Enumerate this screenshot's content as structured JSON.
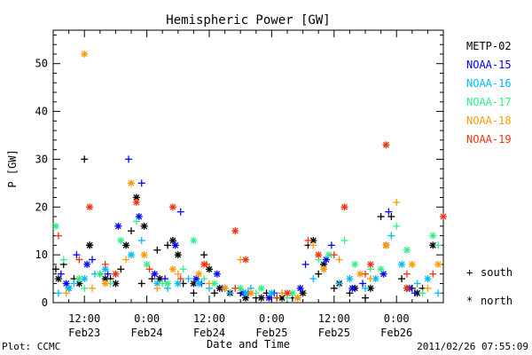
{
  "chart_data": {
    "type": "scatter",
    "title": "Hemispheric Power [GW]",
    "xlabel": "Date and Time",
    "ylabel": "P [GW]",
    "ylim": [
      0,
      57
    ],
    "xlim": [
      "2011-02-23 06:00",
      "2011-02-26 09:00"
    ],
    "yticks": [
      0,
      10,
      20,
      30,
      40,
      50
    ],
    "xticks": [
      {
        "at": "2011-02-23 12:00",
        "time": "12:00",
        "date": "Feb23"
      },
      {
        "at": "2011-02-24 00:00",
        "time": "0:00",
        "date": "Feb24"
      },
      {
        "at": "2011-02-24 12:00",
        "time": "12:00",
        "date": "Feb24"
      },
      {
        "at": "2011-02-25 00:00",
        "time": "0:00",
        "date": "Feb25"
      },
      {
        "at": "2011-02-25 12:00",
        "time": "12:00",
        "date": "Feb25"
      },
      {
        "at": "2011-02-26 00:00",
        "time": "0:00",
        "date": "Feb26"
      }
    ],
    "grid": false,
    "legend_position": "right",
    "markers": {
      "south": "+",
      "north": "*"
    },
    "marker_legend": {
      "south": "south",
      "north": "north"
    },
    "series": [
      {
        "name": "METP-02",
        "color": "#000000",
        "south": [
          [
            "2011-02-23 06:30",
            7
          ],
          [
            "2011-02-23 08:00",
            8
          ],
          [
            "2011-02-23 10:00",
            5
          ],
          [
            "2011-02-23 12:00",
            30
          ],
          [
            "2011-02-23 13:00",
            12
          ],
          [
            "2011-02-23 15:00",
            6
          ],
          [
            "2011-02-23 17:00",
            5
          ],
          [
            "2011-02-23 19:00",
            7
          ],
          [
            "2011-02-23 21:00",
            15
          ],
          [
            "2011-02-23 23:00",
            4
          ],
          [
            "2011-02-24 01:00",
            5
          ],
          [
            "2011-02-24 02:00",
            11
          ],
          [
            "2011-02-24 04:00",
            12
          ],
          [
            "2011-02-24 07:00",
            4
          ],
          [
            "2011-02-24 09:00",
            2
          ],
          [
            "2011-02-24 11:00",
            10
          ],
          [
            "2011-02-24 13:00",
            2
          ],
          [
            "2011-02-24 15:00",
            3
          ],
          [
            "2011-02-24 18:00",
            2
          ],
          [
            "2011-02-24 21:00",
            1
          ],
          [
            "2011-02-24 23:00",
            2
          ],
          [
            "2011-02-25 01:00",
            1
          ],
          [
            "2011-02-25 04:00",
            1
          ],
          [
            "2011-02-25 07:00",
            12
          ],
          [
            "2011-02-25 09:00",
            6
          ],
          [
            "2011-02-25 12:00",
            3
          ],
          [
            "2011-02-25 15:00",
            2
          ],
          [
            "2011-02-25 18:00",
            1
          ],
          [
            "2011-02-25 21:00",
            18
          ],
          [
            "2011-02-25 23:00",
            18
          ],
          [
            "2011-02-26 01:00",
            5
          ],
          [
            "2011-02-26 03:00",
            3
          ],
          [
            "2011-02-26 05:00",
            3
          ]
        ],
        "north": [
          [
            "2011-02-23 07:00",
            5
          ],
          [
            "2011-02-23 09:00",
            3
          ],
          [
            "2011-02-23 11:00",
            4
          ],
          [
            "2011-02-23 13:00",
            12
          ],
          [
            "2011-02-23 16:00",
            5
          ],
          [
            "2011-02-23 18:00",
            4
          ],
          [
            "2011-02-23 20:00",
            12
          ],
          [
            "2011-02-23 22:00",
            22
          ],
          [
            "2011-02-23 23:30",
            16
          ],
          [
            "2011-02-24 02:30",
            5
          ],
          [
            "2011-02-24 05:00",
            13
          ],
          [
            "2011-02-24 06:00",
            10
          ],
          [
            "2011-02-24 09:00",
            4
          ],
          [
            "2011-02-24 12:00",
            7
          ],
          [
            "2011-02-24 14:00",
            3
          ],
          [
            "2011-02-24 16:00",
            2
          ],
          [
            "2011-02-24 19:00",
            1
          ],
          [
            "2011-02-24 22:00",
            1
          ],
          [
            "2011-02-25 02:00",
            1
          ],
          [
            "2011-02-25 06:00",
            2
          ],
          [
            "2011-02-25 08:00",
            13
          ],
          [
            "2011-02-25 10:00",
            8
          ],
          [
            "2011-02-25 13:00",
            4
          ],
          [
            "2011-02-25 16:00",
            3
          ],
          [
            "2011-02-25 19:00",
            3
          ],
          [
            "2011-02-25 22:00",
            12
          ],
          [
            "2011-02-26 02:00",
            3
          ],
          [
            "2011-02-26 04:00",
            2
          ],
          [
            "2011-02-26 07:00",
            12
          ]
        ]
      },
      {
        "name": "NOAA-15",
        "color": "#0000ff",
        "south": [
          [
            "2011-02-23 07:30",
            6
          ],
          [
            "2011-02-23 10:30",
            10
          ],
          [
            "2011-02-23 13:30",
            9
          ],
          [
            "2011-02-23 16:30",
            6
          ],
          [
            "2011-02-23 20:30",
            30
          ],
          [
            "2011-02-23 23:00",
            25
          ],
          [
            "2011-02-24 03:30",
            5
          ],
          [
            "2011-02-24 06:30",
            19
          ],
          [
            "2011-02-24 10:30",
            4
          ],
          [
            "2011-02-24 14:30",
            3
          ],
          [
            "2011-02-24 19:30",
            2
          ],
          [
            "2011-02-25 00:30",
            2
          ],
          [
            "2011-02-25 06:30",
            8
          ],
          [
            "2011-02-25 11:30",
            12
          ],
          [
            "2011-02-25 17:30",
            4
          ],
          [
            "2011-02-25 22:30",
            19
          ],
          [
            "2011-02-26 03:30",
            2
          ]
        ],
        "north": [
          [
            "2011-02-23 08:30",
            4
          ],
          [
            "2011-02-23 12:30",
            8
          ],
          [
            "2011-02-23 18:30",
            16
          ],
          [
            "2011-02-23 22:30",
            18
          ],
          [
            "2011-02-24 01:30",
            6
          ],
          [
            "2011-02-24 05:30",
            12
          ],
          [
            "2011-02-24 09:30",
            5
          ],
          [
            "2011-02-24 13:30",
            6
          ],
          [
            "2011-02-24 18:30",
            2
          ],
          [
            "2011-02-24 23:30",
            1
          ],
          [
            "2011-02-25 05:30",
            3
          ],
          [
            "2011-02-25 10:30",
            9
          ],
          [
            "2011-02-25 15:30",
            3
          ],
          [
            "2011-02-25 21:30",
            6
          ],
          [
            "2011-02-26 02:30",
            3
          ]
        ]
      },
      {
        "name": "NOAA-16",
        "color": "#00bbff",
        "south": [
          [
            "2011-02-23 07:00",
            2
          ],
          [
            "2011-02-23 10:00",
            4
          ],
          [
            "2011-02-23 14:00",
            6
          ],
          [
            "2011-02-23 18:00",
            6
          ],
          [
            "2011-02-23 23:00",
            13
          ],
          [
            "2011-02-24 04:00",
            3
          ],
          [
            "2011-02-24 08:00",
            5
          ],
          [
            "2011-02-24 12:00",
            3
          ],
          [
            "2011-02-24 16:00",
            2
          ],
          [
            "2011-02-24 20:00",
            3
          ],
          [
            "2011-02-25 02:00",
            2
          ],
          [
            "2011-02-25 08:00",
            5
          ],
          [
            "2011-02-25 13:00",
            4
          ],
          [
            "2011-02-25 18:00",
            3
          ],
          [
            "2011-02-25 23:00",
            14
          ],
          [
            "2011-02-26 04:00",
            4
          ],
          [
            "2011-02-26 08:00",
            2
          ]
        ],
        "north": [
          [
            "2011-02-23 09:00",
            3
          ],
          [
            "2011-02-23 12:00",
            5
          ],
          [
            "2011-02-23 16:00",
            7
          ],
          [
            "2011-02-23 21:00",
            10
          ],
          [
            "2011-02-24 02:00",
            4
          ],
          [
            "2011-02-24 06:00",
            4
          ],
          [
            "2011-02-24 10:00",
            4
          ],
          [
            "2011-02-24 15:00",
            3
          ],
          [
            "2011-02-24 19:00",
            2
          ],
          [
            "2011-02-25 00:00",
            2
          ],
          [
            "2011-02-25 05:00",
            1
          ],
          [
            "2011-02-25 10:00",
            7
          ],
          [
            "2011-02-25 15:00",
            5
          ],
          [
            "2011-02-25 20:00",
            5
          ],
          [
            "2011-02-26 01:00",
            8
          ],
          [
            "2011-02-26 06:00",
            5
          ]
        ]
      },
      {
        "name": "NOAA-17",
        "color": "#33ee88",
        "south": [
          [
            "2011-02-23 08:00",
            9
          ],
          [
            "2011-02-23 12:00",
            3
          ],
          [
            "2011-02-23 17:00",
            4
          ],
          [
            "2011-02-23 22:00",
            17
          ],
          [
            "2011-02-24 03:00",
            4
          ],
          [
            "2011-02-24 07:00",
            7
          ],
          [
            "2011-02-24 11:00",
            5
          ],
          [
            "2011-02-24 17:00",
            3
          ],
          [
            "2011-02-24 21:00",
            2
          ],
          [
            "2011-02-25 03:00",
            1
          ],
          [
            "2011-02-25 09:00",
            9
          ],
          [
            "2011-02-25 14:00",
            13
          ],
          [
            "2011-02-25 19:00",
            7
          ],
          [
            "2011-02-26 00:00",
            16
          ],
          [
            "2011-02-26 05:00",
            2
          ],
          [
            "2011-02-26 08:00",
            12
          ]
        ],
        "north": [
          [
            "2011-02-23 06:30",
            16
          ],
          [
            "2011-02-23 11:00",
            5
          ],
          [
            "2011-02-23 15:00",
            6
          ],
          [
            "2011-02-23 19:00",
            13
          ],
          [
            "2011-02-24 00:00",
            8
          ],
          [
            "2011-02-24 04:00",
            4
          ],
          [
            "2011-02-24 09:00",
            13
          ],
          [
            "2011-02-24 13:00",
            4
          ],
          [
            "2011-02-24 18:00",
            3
          ],
          [
            "2011-02-24 22:00",
            3
          ],
          [
            "2011-02-25 04:00",
            2
          ],
          [
            "2011-02-25 11:00",
            10
          ],
          [
            "2011-02-25 16:00",
            8
          ],
          [
            "2011-02-25 21:00",
            7
          ],
          [
            "2011-02-26 02:00",
            11
          ],
          [
            "2011-02-26 07:00",
            14
          ]
        ]
      },
      {
        "name": "NOAA-18",
        "color": "#ff9900",
        "south": [
          [
            "2011-02-23 08:30",
            2
          ],
          [
            "2011-02-23 13:30",
            3
          ],
          [
            "2011-02-23 20:00",
            9
          ],
          [
            "2011-02-24 02:00",
            3
          ],
          [
            "2011-02-24 06:00",
            6
          ],
          [
            "2011-02-24 12:00",
            4
          ],
          [
            "2011-02-24 18:00",
            9
          ],
          [
            "2011-02-25 02:00",
            2
          ],
          [
            "2011-02-25 08:00",
            12
          ],
          [
            "2011-02-25 13:00",
            9
          ],
          [
            "2011-02-25 19:00",
            5
          ],
          [
            "2011-02-26 00:00",
            21
          ],
          [
            "2011-02-26 06:00",
            3
          ]
        ],
        "north": [
          [
            "2011-02-23 12:00",
            52
          ],
          [
            "2011-02-23 16:00",
            4
          ],
          [
            "2011-02-23 21:00",
            25
          ],
          [
            "2011-02-23 23:30",
            10
          ],
          [
            "2011-02-24 05:00",
            7
          ],
          [
            "2011-02-24 10:00",
            6
          ],
          [
            "2011-02-24 15:00",
            3
          ],
          [
            "2011-02-24 20:00",
            2
          ],
          [
            "2011-02-25 05:00",
            1
          ],
          [
            "2011-02-25 10:00",
            7
          ],
          [
            "2011-02-25 17:00",
            6
          ],
          [
            "2011-02-25 22:00",
            12
          ],
          [
            "2011-02-26 03:00",
            8
          ],
          [
            "2011-02-26 08:00",
            8
          ]
        ]
      },
      {
        "name": "NOAA-19",
        "color": "#ee3311",
        "south": [
          [
            "2011-02-23 07:00",
            14
          ],
          [
            "2011-02-23 11:00",
            9
          ],
          [
            "2011-02-23 16:00",
            8
          ],
          [
            "2011-02-24 00:30",
            7
          ],
          [
            "2011-02-24 06:30",
            5
          ],
          [
            "2011-02-24 11:30",
            8
          ],
          [
            "2011-02-24 17:00",
            3
          ],
          [
            "2011-02-25 01:00",
            1
          ],
          [
            "2011-02-25 07:00",
            13
          ],
          [
            "2011-02-25 12:00",
            10
          ],
          [
            "2011-02-25 18:00",
            6
          ],
          [
            "2011-02-26 02:00",
            6
          ],
          [
            "2011-02-26 07:00",
            6
          ]
        ],
        "north": [
          [
            "2011-02-23 13:00",
            20
          ],
          [
            "2011-02-23 18:00",
            6
          ],
          [
            "2011-02-23 22:00",
            21
          ],
          [
            "2011-02-24 05:00",
            20
          ],
          [
            "2011-02-24 11:00",
            8
          ],
          [
            "2011-02-24 17:00",
            15
          ],
          [
            "2011-02-24 19:00",
            9
          ],
          [
            "2011-02-25 03:00",
            2
          ],
          [
            "2011-02-25 09:00",
            10
          ],
          [
            "2011-02-25 14:00",
            20
          ],
          [
            "2011-02-25 19:00",
            8
          ],
          [
            "2011-02-25 22:00",
            33
          ],
          [
            "2011-02-26 02:00",
            3
          ],
          [
            "2011-02-26 09:00",
            18
          ]
        ]
      }
    ]
  },
  "footer": {
    "left": "Plot: CCMC",
    "right": "2011/02/26 07:55:09"
  }
}
